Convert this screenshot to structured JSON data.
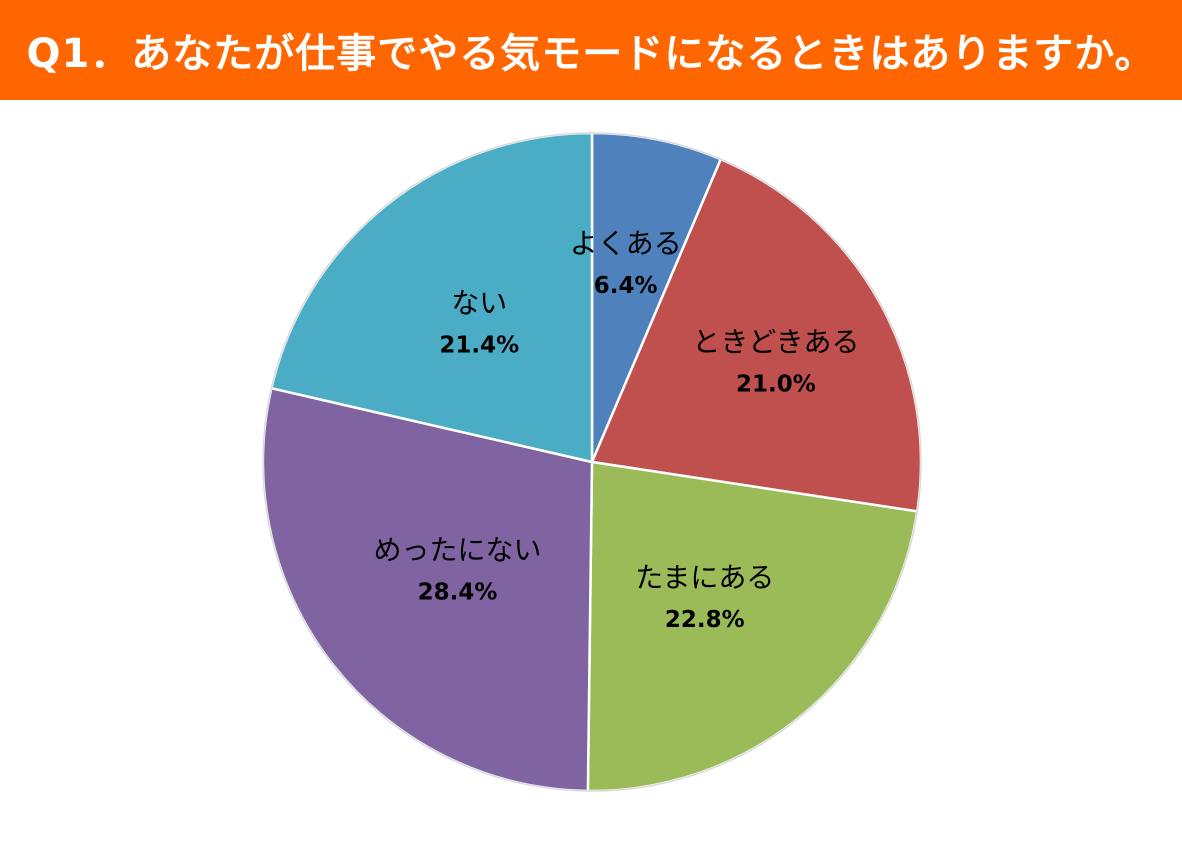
{
  "title": "Q1．あなたが仕事でやる気モードになるときはありますか。",
  "colors": {
    "title_bar": "#ff6600",
    "title_text": "#ffffff"
  },
  "chart_data": {
    "type": "pie",
    "start_angle": "12 o'clock",
    "direction": "clockwise",
    "slices": [
      {
        "label": "よくある",
        "value": 6.4,
        "value_label": "6.4%",
        "color": "#4f81bd"
      },
      {
        "label": "ときどきある",
        "value": 21.0,
        "value_label": "21.0%",
        "color": "#c0504d"
      },
      {
        "label": "たまにある",
        "value": 22.8,
        "value_label": "22.8%",
        "color": "#9bbb59"
      },
      {
        "label": "めったにない",
        "value": 28.4,
        "value_label": "28.4%",
        "color": "#8064a2"
      },
      {
        "label": "ない",
        "value": 21.4,
        "value_label": "21.4%",
        "color": "#4bacc6"
      }
    ]
  }
}
